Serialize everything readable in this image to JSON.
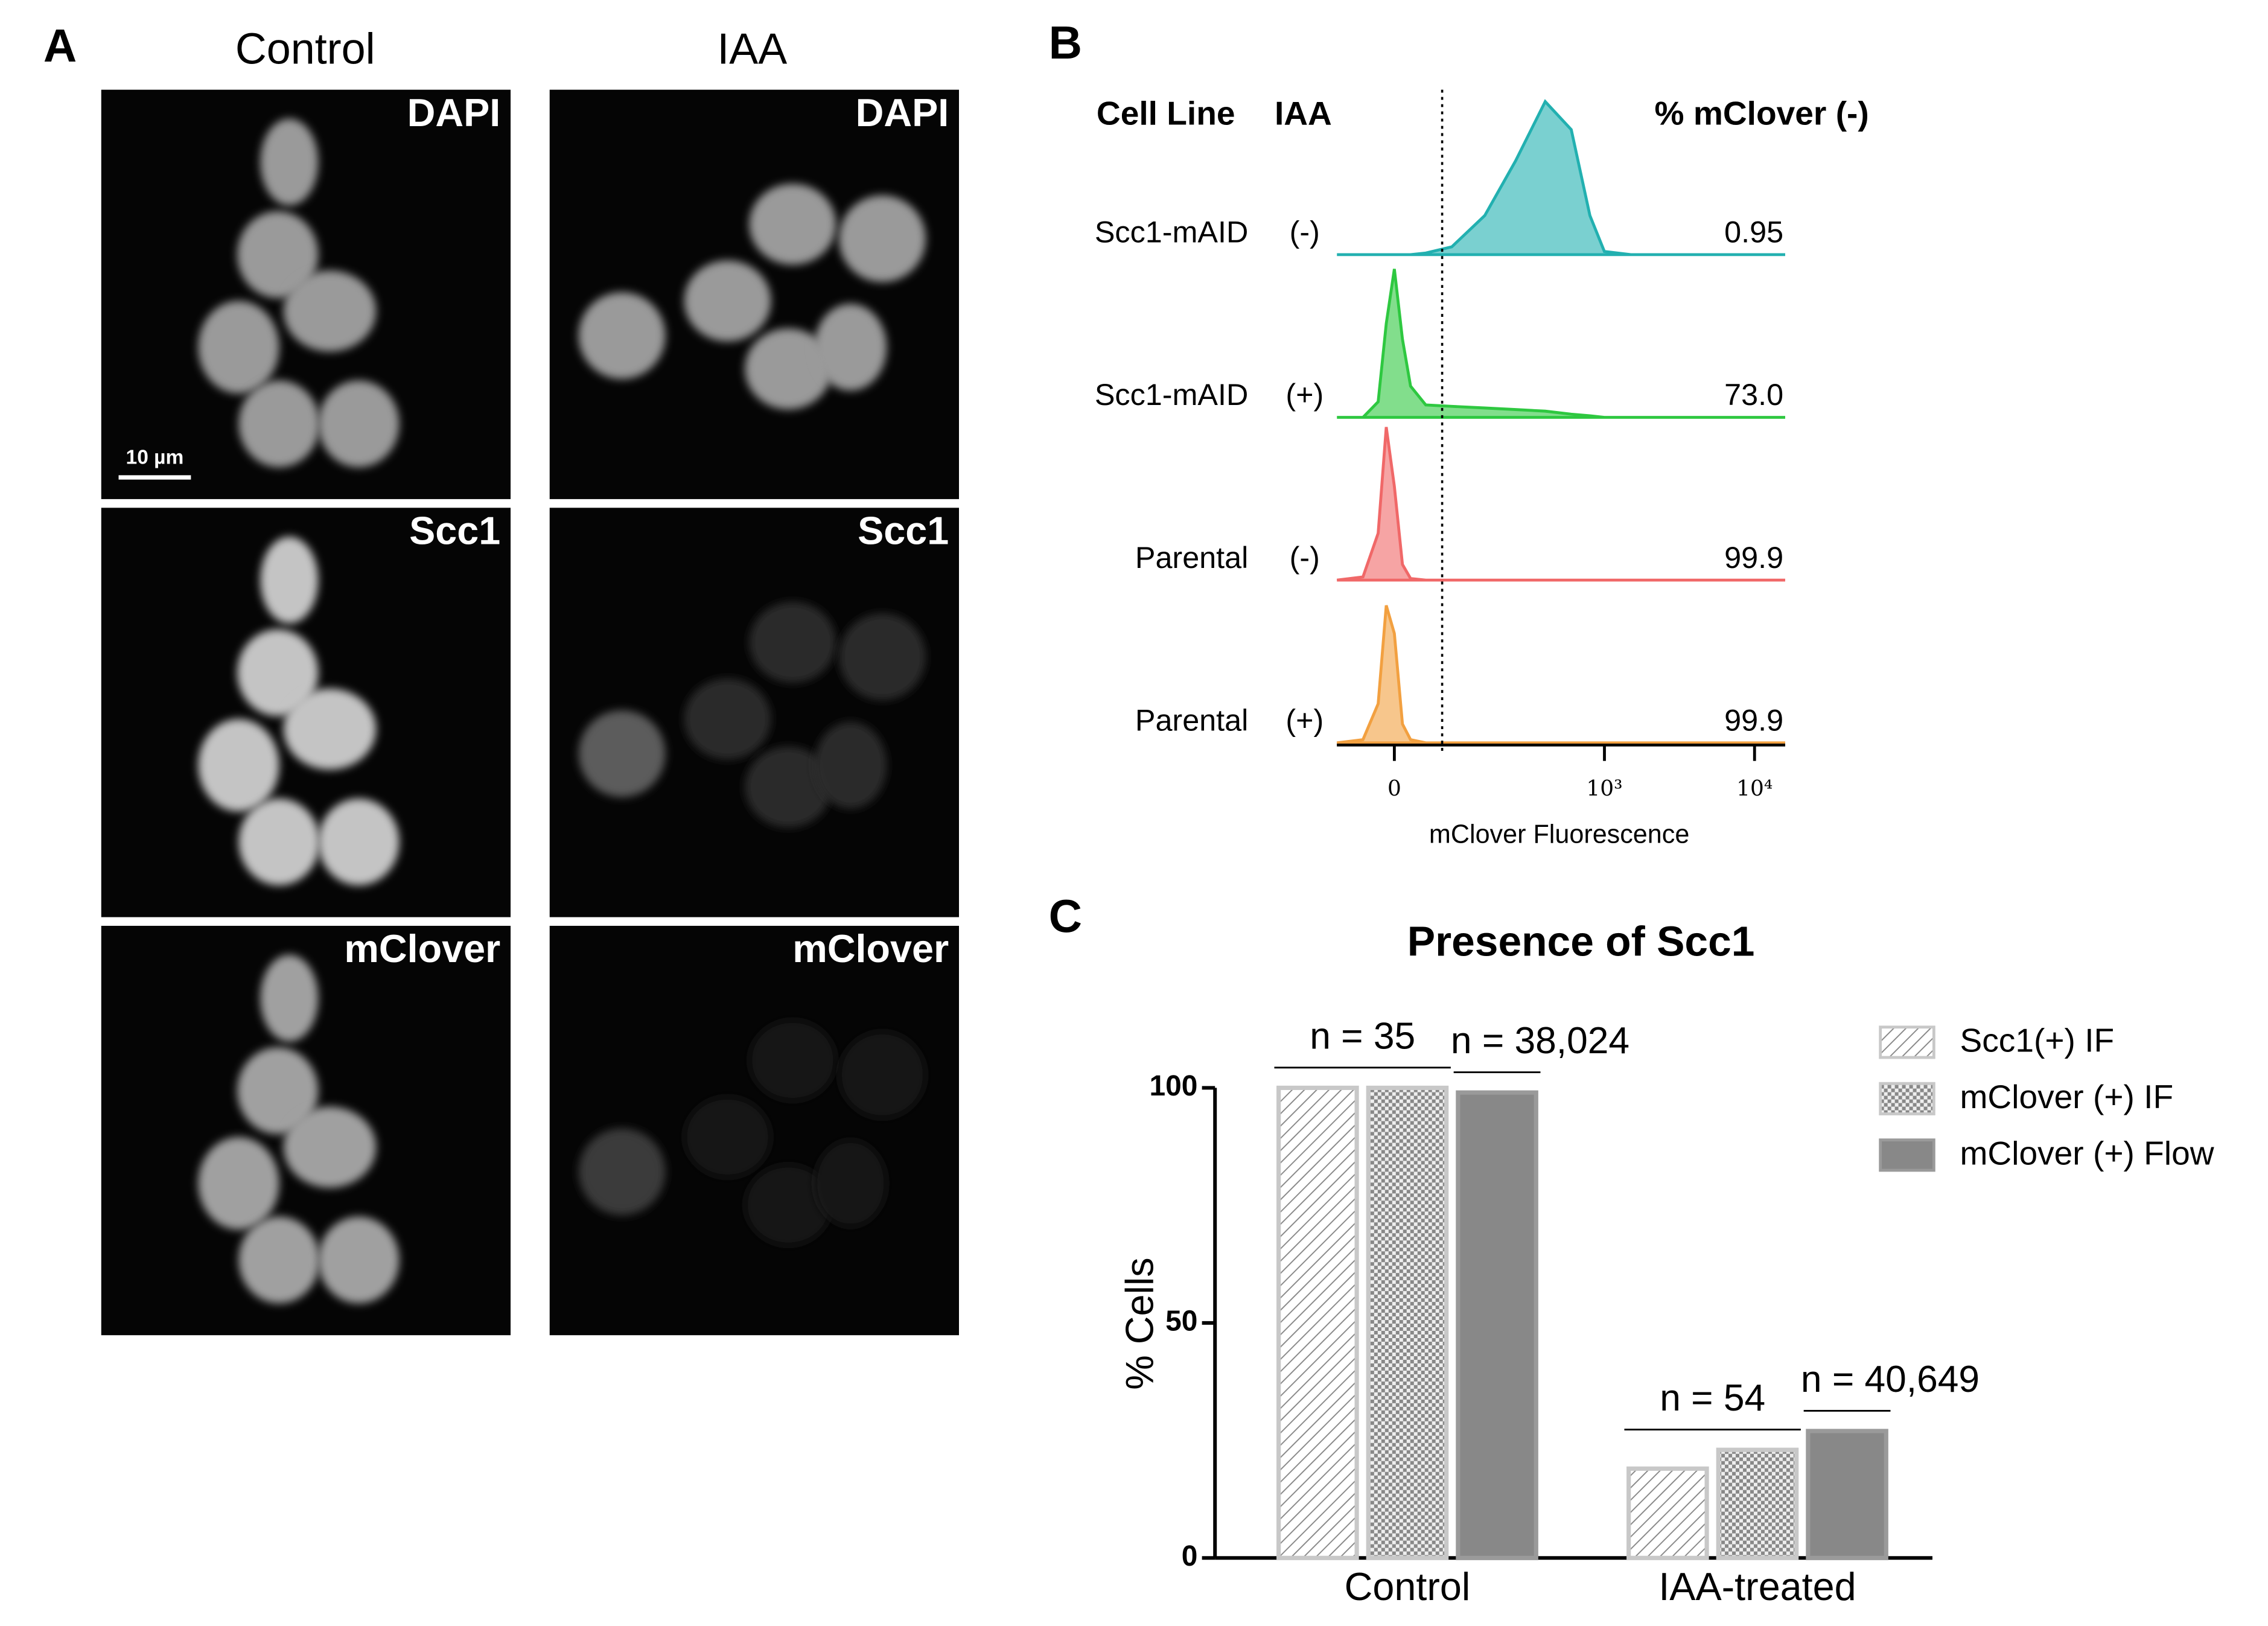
{
  "panel_a": {
    "label": "A",
    "columns": [
      "Control",
      "IAA"
    ],
    "channels": [
      "DAPI",
      "Scc1",
      "mClover"
    ],
    "scale_bar": "10 µm"
  },
  "chart_data": [
    {
      "type": "flow-histogram",
      "panel_label": "B",
      "x_label": "mClover Fluorescence",
      "headers": [
        "Cell Line",
        "IAA",
        "% mClover (-)"
      ],
      "x_scale": "asinh",
      "xlim": [
        -80,
        16000
      ],
      "xticks": [
        0,
        {
          "value": 1000,
          "label": "10³"
        },
        {
          "value": 10000,
          "label": "10⁴"
        }
      ],
      "gate": 64,
      "x": [
        -80,
        -40,
        -20,
        -10,
        0,
        10,
        20,
        40,
        80,
        150,
        250,
        400,
        600,
        800,
        1000,
        1500,
        3000,
        16000
      ],
      "series": [
        {
          "name": "Scc1-mAID",
          "iaa": "(-)",
          "color": "#22b0b0",
          "percent": 0.95,
          "percent_label": "0.95",
          "values": [
            0,
            0,
            0,
            0,
            0,
            0,
            0,
            0.01,
            0.05,
            0.25,
            0.6,
            0.98,
            0.8,
            0.25,
            0.02,
            0,
            0,
            0
          ]
        },
        {
          "name": "Scc1-mAID",
          "iaa": "(+)",
          "color": "#2ec840",
          "percent": 73.0,
          "percent_label": "73.0",
          "values": [
            0,
            0,
            0.1,
            0.6,
            0.95,
            0.5,
            0.2,
            0.08,
            0.07,
            0.06,
            0.05,
            0.04,
            0.02,
            0.01,
            0,
            0,
            0,
            0
          ]
        },
        {
          "name": "Parental",
          "iaa": "(-)",
          "color": "#f06868",
          "percent": 99.9,
          "percent_label": "99.9",
          "values": [
            0,
            0.02,
            0.3,
            0.98,
            0.6,
            0.1,
            0.01,
            0,
            0,
            0,
            0,
            0,
            0,
            0,
            0,
            0,
            0,
            0
          ]
        },
        {
          "name": "Parental",
          "iaa": "(+)",
          "color": "#f2a040",
          "percent": 99.9,
          "percent_label": "99.9",
          "values": [
            0,
            0.02,
            0.25,
            0.88,
            0.7,
            0.12,
            0.02,
            0,
            0,
            0,
            0,
            0,
            0,
            0,
            0,
            0,
            0,
            0
          ]
        }
      ]
    },
    {
      "type": "bar",
      "panel_label": "C",
      "title": "Presence of Scc1",
      "y_label": "% Cells",
      "categories": [
        "Control",
        "IAA-treated"
      ],
      "series": [
        {
          "name": "Scc1(+) IF",
          "pattern": "hatch",
          "values": [
            100,
            19
          ]
        },
        {
          "name": "mClover (+) IF",
          "pattern": "checker",
          "values": [
            100,
            23
          ]
        },
        {
          "name": "mClover (+) Flow",
          "pattern": "solid",
          "color": "#888888",
          "values": [
            99,
            27
          ]
        }
      ],
      "annotations": [
        [
          "n = 35",
          "n = 38,024"
        ],
        [
          "n = 54",
          "n = 40,649"
        ]
      ],
      "ylim": [
        0,
        100
      ],
      "yticks": [
        0,
        50,
        100
      ]
    }
  ]
}
